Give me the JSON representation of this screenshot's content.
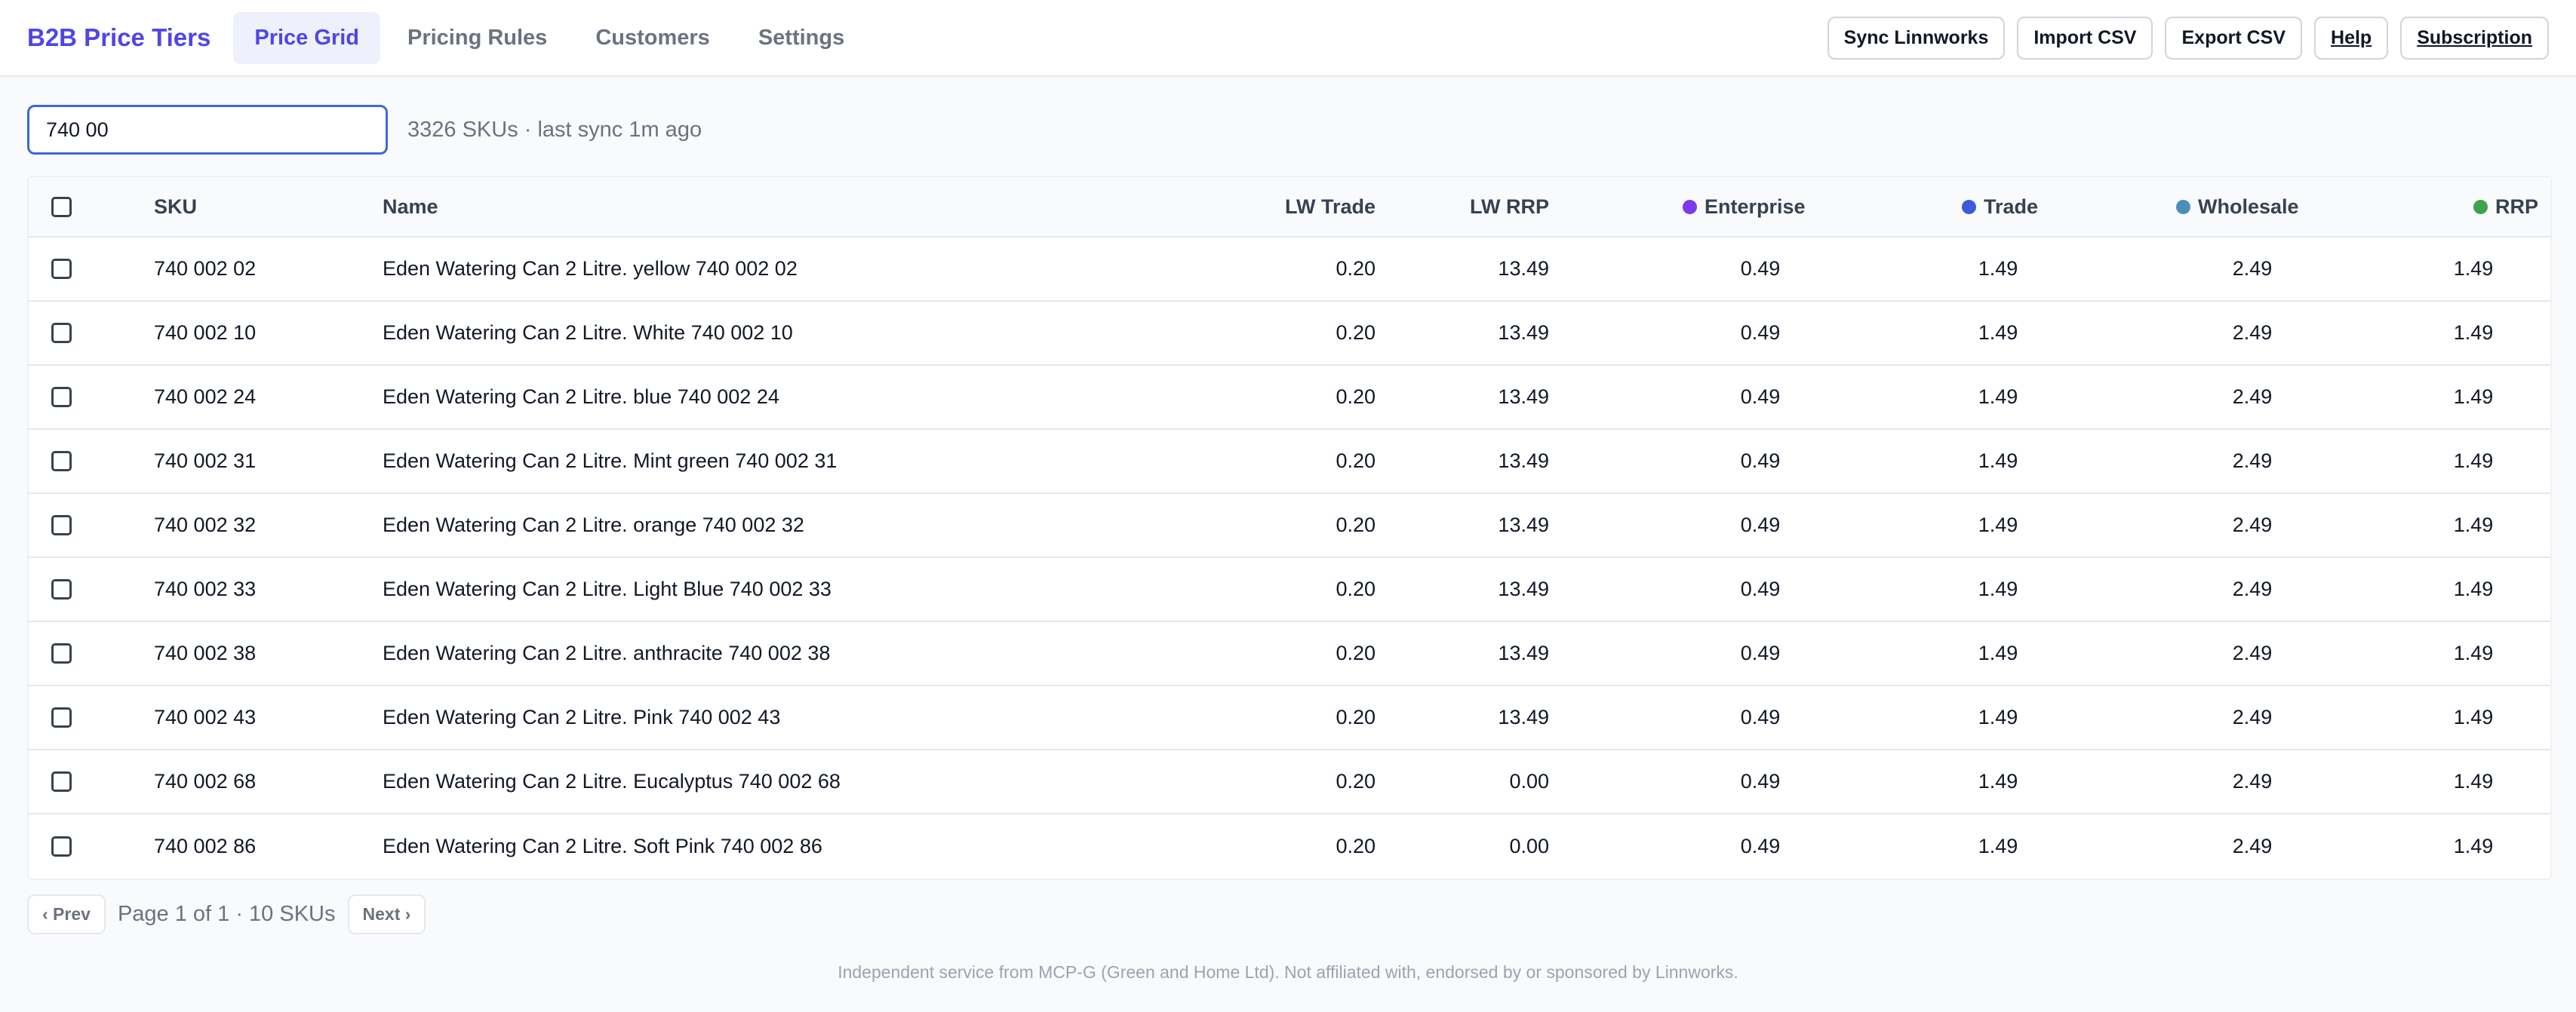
{
  "header": {
    "brand": "B2B Price Tiers",
    "tabs": [
      {
        "label": "Price Grid"
      },
      {
        "label": "Pricing Rules"
      },
      {
        "label": "Customers"
      },
      {
        "label": "Settings"
      }
    ],
    "actions": {
      "sync": "Sync Linnworks",
      "import": "Import CSV",
      "export": "Export CSV",
      "help": "Help",
      "subscription": "Subscription"
    }
  },
  "search": {
    "value": "740 00",
    "meta": "3326 SKUs · last sync 1m ago"
  },
  "table": {
    "columns": {
      "sku": "SKU",
      "name": "Name",
      "lw_trade": "LW Trade",
      "lw_rrp": "LW RRP",
      "enterprise": "Enterprise",
      "trade": "Trade",
      "wholesale": "Wholesale",
      "rrp": "RRP"
    },
    "tier_colors": {
      "enterprise": "#7c3aed",
      "trade": "#3b5bdb",
      "wholesale": "#4a8fb8",
      "rrp": "#3fa34d"
    },
    "rows": [
      {
        "sku": "740 002 02",
        "name": "Eden Watering Can 2 Litre. yellow 740 002 02",
        "lw_trade": "0.20",
        "lw_rrp": "13.49",
        "enterprise": "0.49",
        "trade": "1.49",
        "wholesale": "2.49",
        "rrp": "1.49"
      },
      {
        "sku": "740 002 10",
        "name": "Eden Watering Can 2 Litre. White 740 002 10",
        "lw_trade": "0.20",
        "lw_rrp": "13.49",
        "enterprise": "0.49",
        "trade": "1.49",
        "wholesale": "2.49",
        "rrp": "1.49"
      },
      {
        "sku": "740 002 24",
        "name": "Eden Watering Can 2 Litre. blue 740 002 24",
        "lw_trade": "0.20",
        "lw_rrp": "13.49",
        "enterprise": "0.49",
        "trade": "1.49",
        "wholesale": "2.49",
        "rrp": "1.49"
      },
      {
        "sku": "740 002 31",
        "name": "Eden Watering Can 2 Litre. Mint green 740 002 31",
        "lw_trade": "0.20",
        "lw_rrp": "13.49",
        "enterprise": "0.49",
        "trade": "1.49",
        "wholesale": "2.49",
        "rrp": "1.49"
      },
      {
        "sku": "740 002 32",
        "name": "Eden Watering Can 2 Litre. orange 740 002 32",
        "lw_trade": "0.20",
        "lw_rrp": "13.49",
        "enterprise": "0.49",
        "trade": "1.49",
        "wholesale": "2.49",
        "rrp": "1.49"
      },
      {
        "sku": "740 002 33",
        "name": "Eden Watering Can 2 Litre. Light Blue 740 002 33",
        "lw_trade": "0.20",
        "lw_rrp": "13.49",
        "enterprise": "0.49",
        "trade": "1.49",
        "wholesale": "2.49",
        "rrp": "1.49"
      },
      {
        "sku": "740 002 38",
        "name": "Eden Watering Can 2 Litre. anthracite 740 002 38",
        "lw_trade": "0.20",
        "lw_rrp": "13.49",
        "enterprise": "0.49",
        "trade": "1.49",
        "wholesale": "2.49",
        "rrp": "1.49"
      },
      {
        "sku": "740 002 43",
        "name": "Eden Watering Can 2 Litre. Pink 740 002 43",
        "lw_trade": "0.20",
        "lw_rrp": "13.49",
        "enterprise": "0.49",
        "trade": "1.49",
        "wholesale": "2.49",
        "rrp": "1.49"
      },
      {
        "sku": "740 002 68",
        "name": "Eden Watering Can 2 Litre. Eucalyptus 740 002 68",
        "lw_trade": "0.20",
        "lw_rrp": "0.00",
        "enterprise": "0.49",
        "trade": "1.49",
        "wholesale": "2.49",
        "rrp": "1.49"
      },
      {
        "sku": "740 002 86",
        "name": "Eden Watering Can 2 Litre. Soft Pink 740 002 86",
        "lw_trade": "0.20",
        "lw_rrp": "0.00",
        "enterprise": "0.49",
        "trade": "1.49",
        "wholesale": "2.49",
        "rrp": "1.49"
      }
    ]
  },
  "pagination": {
    "prev": "‹ Prev",
    "info": "Page 1 of 1 · 10 SKUs",
    "next": "Next ›"
  },
  "footer": "Independent service from MCP-G (Green and Home Ltd). Not affiliated with, endorsed by or sponsored by Linnworks."
}
